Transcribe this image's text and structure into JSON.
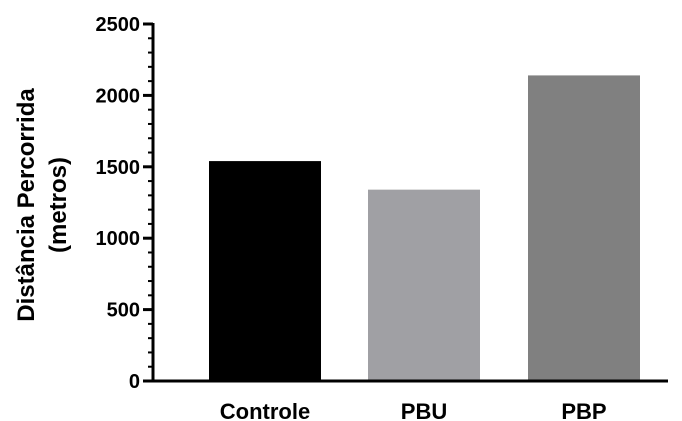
{
  "chart_data": {
    "type": "bar",
    "title": "",
    "xlabel": "",
    "ylabel_line1": "Distância Percorrida",
    "ylabel_line2": "(metros)",
    "categories": [
      "Controle",
      "PBU",
      "PBP"
    ],
    "values": [
      1540,
      1340,
      2140
    ],
    "bar_colors": [
      "#000000",
      "#a0a0a4",
      "#808080"
    ],
    "ylim": [
      0,
      2500
    ],
    "major_ticks": [
      0,
      500,
      1000,
      1500,
      2000,
      2500
    ],
    "tick_labels": [
      "0",
      "500",
      "1000",
      "1500",
      "2000",
      "2500"
    ],
    "minor_tick_step": 100,
    "grid": false,
    "legend": "none"
  }
}
